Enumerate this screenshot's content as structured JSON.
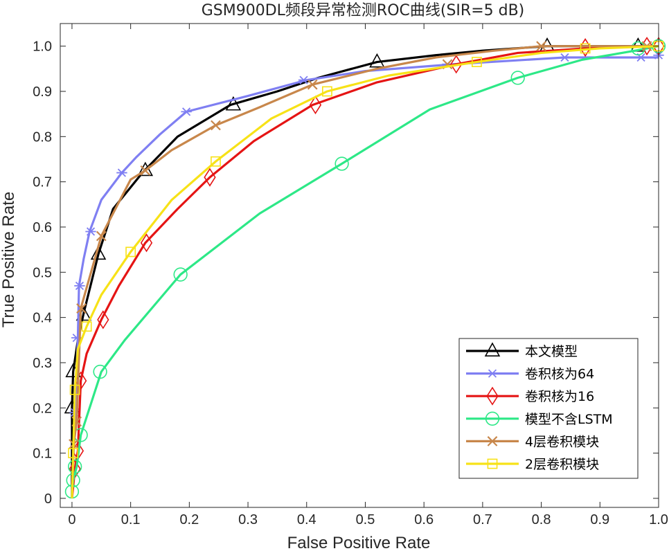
{
  "chart_data": {
    "type": "line",
    "title": "GSM900DL频段异常检测ROC曲线(SIR=5 dB)",
    "xlabel": "False Positive Rate",
    "ylabel": "True Positive Rate",
    "xlim": [
      -0.02,
      1.0
    ],
    "ylim": [
      -0.02,
      1.05
    ],
    "xticks": [
      0,
      0.1,
      0.2,
      0.3,
      0.4,
      0.5,
      0.6,
      0.7,
      0.8,
      0.9,
      1.0
    ],
    "xtick_labels": [
      "0",
      "0.1",
      "0.2",
      "0.3",
      "0.4",
      "0.5",
      "0.6",
      "0.7",
      "0.8",
      "0.9",
      "1.0"
    ],
    "yticks": [
      0,
      0.1,
      0.2,
      0.3,
      0.4,
      0.5,
      0.6,
      0.7,
      0.8,
      0.9,
      1.0
    ],
    "ytick_labels": [
      "0",
      "0.1",
      "0.2",
      "0.3",
      "0.4",
      "0.5",
      "0.6",
      "0.7",
      "0.8",
      "0.9",
      "1.0"
    ],
    "grid": false,
    "legend_position": "bottom-right",
    "series": [
      {
        "name": "本文模型",
        "color": "#000000",
        "marker": "triangle",
        "x": [
          0.0,
          0.0,
          0.002,
          0.01,
          0.02,
          0.045,
          0.07,
          0.12,
          0.15,
          0.18,
          0.27,
          0.35,
          0.42,
          0.52,
          0.62,
          0.7,
          0.81,
          0.9,
          0.97,
          1.0
        ],
        "y": [
          0.0,
          0.2,
          0.28,
          0.35,
          0.41,
          0.54,
          0.64,
          0.72,
          0.76,
          0.8,
          0.87,
          0.9,
          0.93,
          0.965,
          0.98,
          0.99,
          1.0,
          1.0,
          1.0,
          1.0
        ],
        "marker_x": [
          0.0,
          0.002,
          0.02,
          0.045,
          0.125,
          0.275,
          0.52,
          0.81,
          0.965
        ],
        "marker_y": [
          0.2,
          0.28,
          0.405,
          0.54,
          0.725,
          0.87,
          0.965,
          1.0,
          1.0
        ]
      },
      {
        "name": "卷积核为64",
        "color": "#7f7ff2",
        "marker": "asterisk",
        "x": [
          0.0,
          0.005,
          0.01,
          0.012,
          0.02,
          0.03,
          0.05,
          0.085,
          0.11,
          0.15,
          0.195,
          0.3,
          0.4,
          0.5,
          0.65,
          0.84,
          0.95,
          1.0
        ],
        "y": [
          0.0,
          0.19,
          0.355,
          0.47,
          0.53,
          0.59,
          0.66,
          0.72,
          0.755,
          0.805,
          0.855,
          0.89,
          0.925,
          0.945,
          0.96,
          0.975,
          0.975,
          0.975
        ],
        "marker_x": [
          0.005,
          0.008,
          0.013,
          0.032,
          0.085,
          0.195,
          0.395,
          0.64,
          0.84,
          0.97,
          1.0
        ],
        "marker_y": [
          0.19,
          0.355,
          0.47,
          0.59,
          0.72,
          0.855,
          0.925,
          0.96,
          0.975,
          0.975,
          0.98
        ]
      },
      {
        "name": "卷积核为16",
        "color": "#e51414",
        "marker": "diamond",
        "x": [
          0.0,
          0.005,
          0.01,
          0.015,
          0.025,
          0.05,
          0.08,
          0.125,
          0.18,
          0.235,
          0.31,
          0.41,
          0.52,
          0.655,
          0.76,
          0.875,
          0.98,
          1.0
        ],
        "y": [
          0.0,
          0.065,
          0.105,
          0.26,
          0.32,
          0.395,
          0.47,
          0.565,
          0.64,
          0.71,
          0.79,
          0.87,
          0.92,
          0.96,
          0.985,
          0.995,
          1.0,
          1.0
        ],
        "marker_x": [
          0.005,
          0.01,
          0.015,
          0.053,
          0.127,
          0.235,
          0.415,
          0.655,
          0.875,
          0.98,
          1.0
        ],
        "marker_y": [
          0.065,
          0.105,
          0.26,
          0.395,
          0.565,
          0.71,
          0.87,
          0.96,
          0.997,
          1.0,
          1.0
        ]
      },
      {
        "name": "模型不含LSTM",
        "color": "#2de887",
        "marker": "circle",
        "x": [
          0.0,
          0.0,
          0.002,
          0.008,
          0.015,
          0.05,
          0.09,
          0.185,
          0.32,
          0.46,
          0.61,
          0.76,
          0.87,
          0.96,
          1.0
        ],
        "y": [
          0.0,
          0.015,
          0.04,
          0.07,
          0.14,
          0.28,
          0.35,
          0.495,
          0.63,
          0.74,
          0.86,
          0.93,
          0.97,
          0.99,
          1.0
        ],
        "marker_x": [
          0.0,
          0.002,
          0.005,
          0.015,
          0.048,
          0.185,
          0.46,
          0.76,
          0.965,
          1.0
        ],
        "marker_y": [
          0.015,
          0.04,
          0.07,
          0.14,
          0.28,
          0.495,
          0.74,
          0.93,
          0.995,
          1.0
        ]
      },
      {
        "name": "4层卷积模块",
        "color": "#c8874b",
        "marker": "x",
        "x": [
          0.0,
          0.003,
          0.008,
          0.015,
          0.05,
          0.1,
          0.125,
          0.17,
          0.245,
          0.32,
          0.41,
          0.52,
          0.62,
          0.72,
          0.8,
          0.9,
          1.0
        ],
        "y": [
          0.0,
          0.12,
          0.17,
          0.42,
          0.58,
          0.705,
          0.725,
          0.77,
          0.825,
          0.865,
          0.915,
          0.95,
          0.975,
          0.99,
          1.0,
          1.0,
          1.0
        ],
        "marker_x": [
          0.003,
          0.008,
          0.016,
          0.05,
          0.125,
          0.245,
          0.41,
          0.64,
          0.8,
          0.98
        ],
        "marker_y": [
          0.12,
          0.17,
          0.42,
          0.58,
          0.725,
          0.825,
          0.915,
          0.96,
          1.0,
          1.0
        ]
      },
      {
        "name": "2层卷积模块",
        "color": "#f7e217",
        "marker": "square",
        "x": [
          0.0,
          0.002,
          0.005,
          0.01,
          0.025,
          0.05,
          0.1,
          0.17,
          0.245,
          0.34,
          0.435,
          0.54,
          0.69,
          0.8,
          0.9,
          1.0
        ],
        "y": [
          0.0,
          0.1,
          0.24,
          0.33,
          0.38,
          0.45,
          0.545,
          0.66,
          0.745,
          0.84,
          0.9,
          0.935,
          0.965,
          0.985,
          0.995,
          1.0
        ],
        "marker_x": [
          0.002,
          0.005,
          0.025,
          0.1,
          0.245,
          0.435,
          0.69,
          0.875,
          1.0
        ],
        "marker_y": [
          0.1,
          0.24,
          0.38,
          0.545,
          0.745,
          0.9,
          0.965,
          0.995,
          1.0
        ]
      }
    ]
  }
}
